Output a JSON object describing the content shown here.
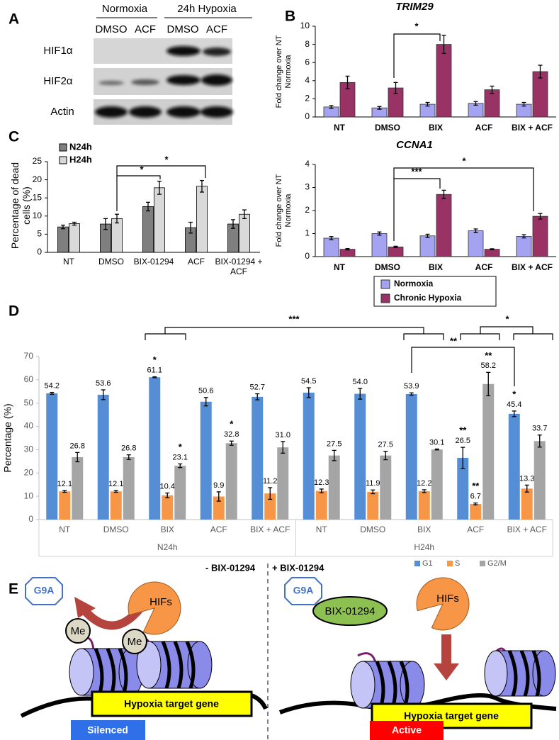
{
  "figure": {
    "panel_labels": [
      "A",
      "B",
      "C",
      "D",
      "E"
    ]
  },
  "blot": {
    "condition_labels": [
      "Normoxia",
      "24h Hypoxia"
    ],
    "lane_labels": [
      "DMSO",
      "ACF",
      "DMSO",
      "ACF"
    ],
    "row_labels": [
      "HIF1α",
      "HIF2α",
      "Actin"
    ]
  },
  "chart_data": [
    {
      "type": "bar",
      "title": "TRIM29",
      "y_label": "Fold change over NT Normoxia",
      "categories": [
        "NT",
        "DMSO",
        "BIX",
        "ACF",
        "BIX + ACF"
      ],
      "series": [
        {
          "color": "#a3a3f2",
          "values": [
            1.1,
            1.0,
            1.4,
            1.5,
            1.4
          ],
          "errors": [
            0.15,
            0.15,
            0.2,
            0.2,
            0.2
          ]
        },
        {
          "color": "#993366",
          "values": [
            3.8,
            3.2,
            8.0,
            3.0,
            5.0
          ],
          "errors": [
            0.7,
            0.6,
            1.0,
            0.4,
            0.7
          ]
        }
      ],
      "ylim": [
        0,
        10
      ],
      "yticks": [
        0,
        2,
        4,
        6,
        8,
        10
      ],
      "annotations": [
        "*"
      ]
    },
    {
      "type": "bar",
      "title": "CCNA1",
      "y_label": "Fold change over NT Normoxia",
      "categories": [
        "NT",
        "DMSO",
        "BIX",
        "ACF",
        "BIX + ACF"
      ],
      "series": [
        {
          "name": "Normoxia",
          "color": "#a3a3f2",
          "values": [
            0.8,
            1.0,
            0.9,
            1.12,
            0.88
          ],
          "errors": [
            0.07,
            0.07,
            0.07,
            0.08,
            0.07
          ]
        },
        {
          "name": "Chronic Hypoxia",
          "color": "#993366",
          "values": [
            0.32,
            0.42,
            2.7,
            0.32,
            1.75
          ],
          "errors": [
            0.03,
            0.03,
            0.18,
            0.02,
            0.12
          ]
        }
      ],
      "ylim": [
        0,
        4
      ],
      "yticks": [
        0,
        1,
        2,
        3,
        4
      ],
      "legend": "bottom",
      "annotations": [
        "***",
        "*"
      ]
    },
    {
      "type": "bar",
      "y_label": "Percentage of dead cells (%)",
      "categories": [
        "NT",
        "DMSO",
        "BIX-01294",
        "ACF",
        "BIX-01294 + ACF"
      ],
      "series": [
        {
          "name": "N24h",
          "color": "#7f7f7f",
          "values": [
            7.0,
            7.8,
            12.6,
            6.8,
            7.8
          ],
          "errors": [
            0.5,
            1.5,
            1.2,
            1.5,
            1.2
          ]
        },
        {
          "name": "H24h",
          "color": "#d9d9d9",
          "values": [
            7.9,
            9.3,
            17.8,
            18.2,
            10.5
          ],
          "errors": [
            0.4,
            1.2,
            1.8,
            1.6,
            1.2
          ]
        }
      ],
      "ylim": [
        0,
        25
      ],
      "yticks": [
        0,
        5,
        10,
        15,
        20,
        25
      ],
      "legend": "upper left",
      "annotations": [
        "*",
        "*"
      ]
    },
    {
      "type": "bar",
      "y_label": "Percentage (%)",
      "categories": [
        "NT",
        "DMSO",
        "BIX",
        "ACF",
        "BIX + ACF",
        "NT",
        "DMSO",
        "BIX",
        "ACF",
        "BIX + ACF"
      ],
      "groups": [
        "N24h",
        "H24h"
      ],
      "series": [
        {
          "name": "G1",
          "color": "#558ed5",
          "values": [
            54.2,
            53.6,
            61.1,
            50.6,
            52.7,
            54.5,
            54.0,
            53.9,
            26.5,
            45.4
          ],
          "value_labels": [
            "54.2",
            "53.6",
            "61.1",
            "50.6",
            "52.7",
            "54.5",
            "54.0",
            "53.9",
            "26.5",
            "45.4"
          ],
          "errors": [
            0.4,
            2.1,
            0.2,
            1.8,
            1.3,
            2.1,
            2.3,
            0.5,
            4.5,
            1.2
          ]
        },
        {
          "name": "S",
          "color": "#f79646",
          "values": [
            12.1,
            12.1,
            10.4,
            9.9,
            11.2,
            12.3,
            11.9,
            12.2,
            6.7,
            13.3
          ],
          "value_labels": [
            "12.1",
            "12.1",
            "10.4",
            "9.9",
            "11.2",
            "12.3",
            "11.9",
            "12.2",
            "6.7",
            "13.3"
          ],
          "errors": [
            0.4,
            0.4,
            1.0,
            2.0,
            2.5,
            0.8,
            0.8,
            0.6,
            0.4,
            1.5
          ]
        },
        {
          "name": "G2/M",
          "color": "#a5a5a5",
          "values": [
            26.8,
            26.8,
            23.1,
            32.8,
            31.0,
            27.5,
            27.5,
            30.1,
            58.2,
            33.7
          ],
          "value_labels": [
            "26.8",
            "26.8",
            "23.1",
            "32.8",
            "31.0",
            "27.5",
            "27.5",
            "30.1",
            "58.2",
            "33.7"
          ],
          "errors": [
            2.0,
            1.0,
            0.8,
            0.9,
            2.5,
            2.2,
            1.8,
            0.2,
            5.0,
            2.6
          ]
        }
      ],
      "ylim": [
        0,
        70
      ],
      "yticks": [
        0,
        10,
        20,
        30,
        40,
        50,
        60,
        70
      ],
      "legend": "bottom right",
      "annotations": [
        "*",
        "*",
        "*",
        "**",
        "**",
        "**",
        "*",
        "***",
        "**",
        "*"
      ]
    }
  ],
  "diagram": {
    "left": {
      "heading": "- BIX-01294",
      "enzyme": "G9A",
      "hifs": "HIFs",
      "marks": [
        "Me",
        "Me"
      ],
      "gene": "Hypoxia target gene",
      "state": "Silenced"
    },
    "right": {
      "heading": "+ BIX-01294",
      "enzyme": "G9A",
      "inhibitor": "BIX-01294",
      "hifs": "HIFs",
      "gene": "Hypoxia target gene",
      "state": "Active"
    }
  }
}
